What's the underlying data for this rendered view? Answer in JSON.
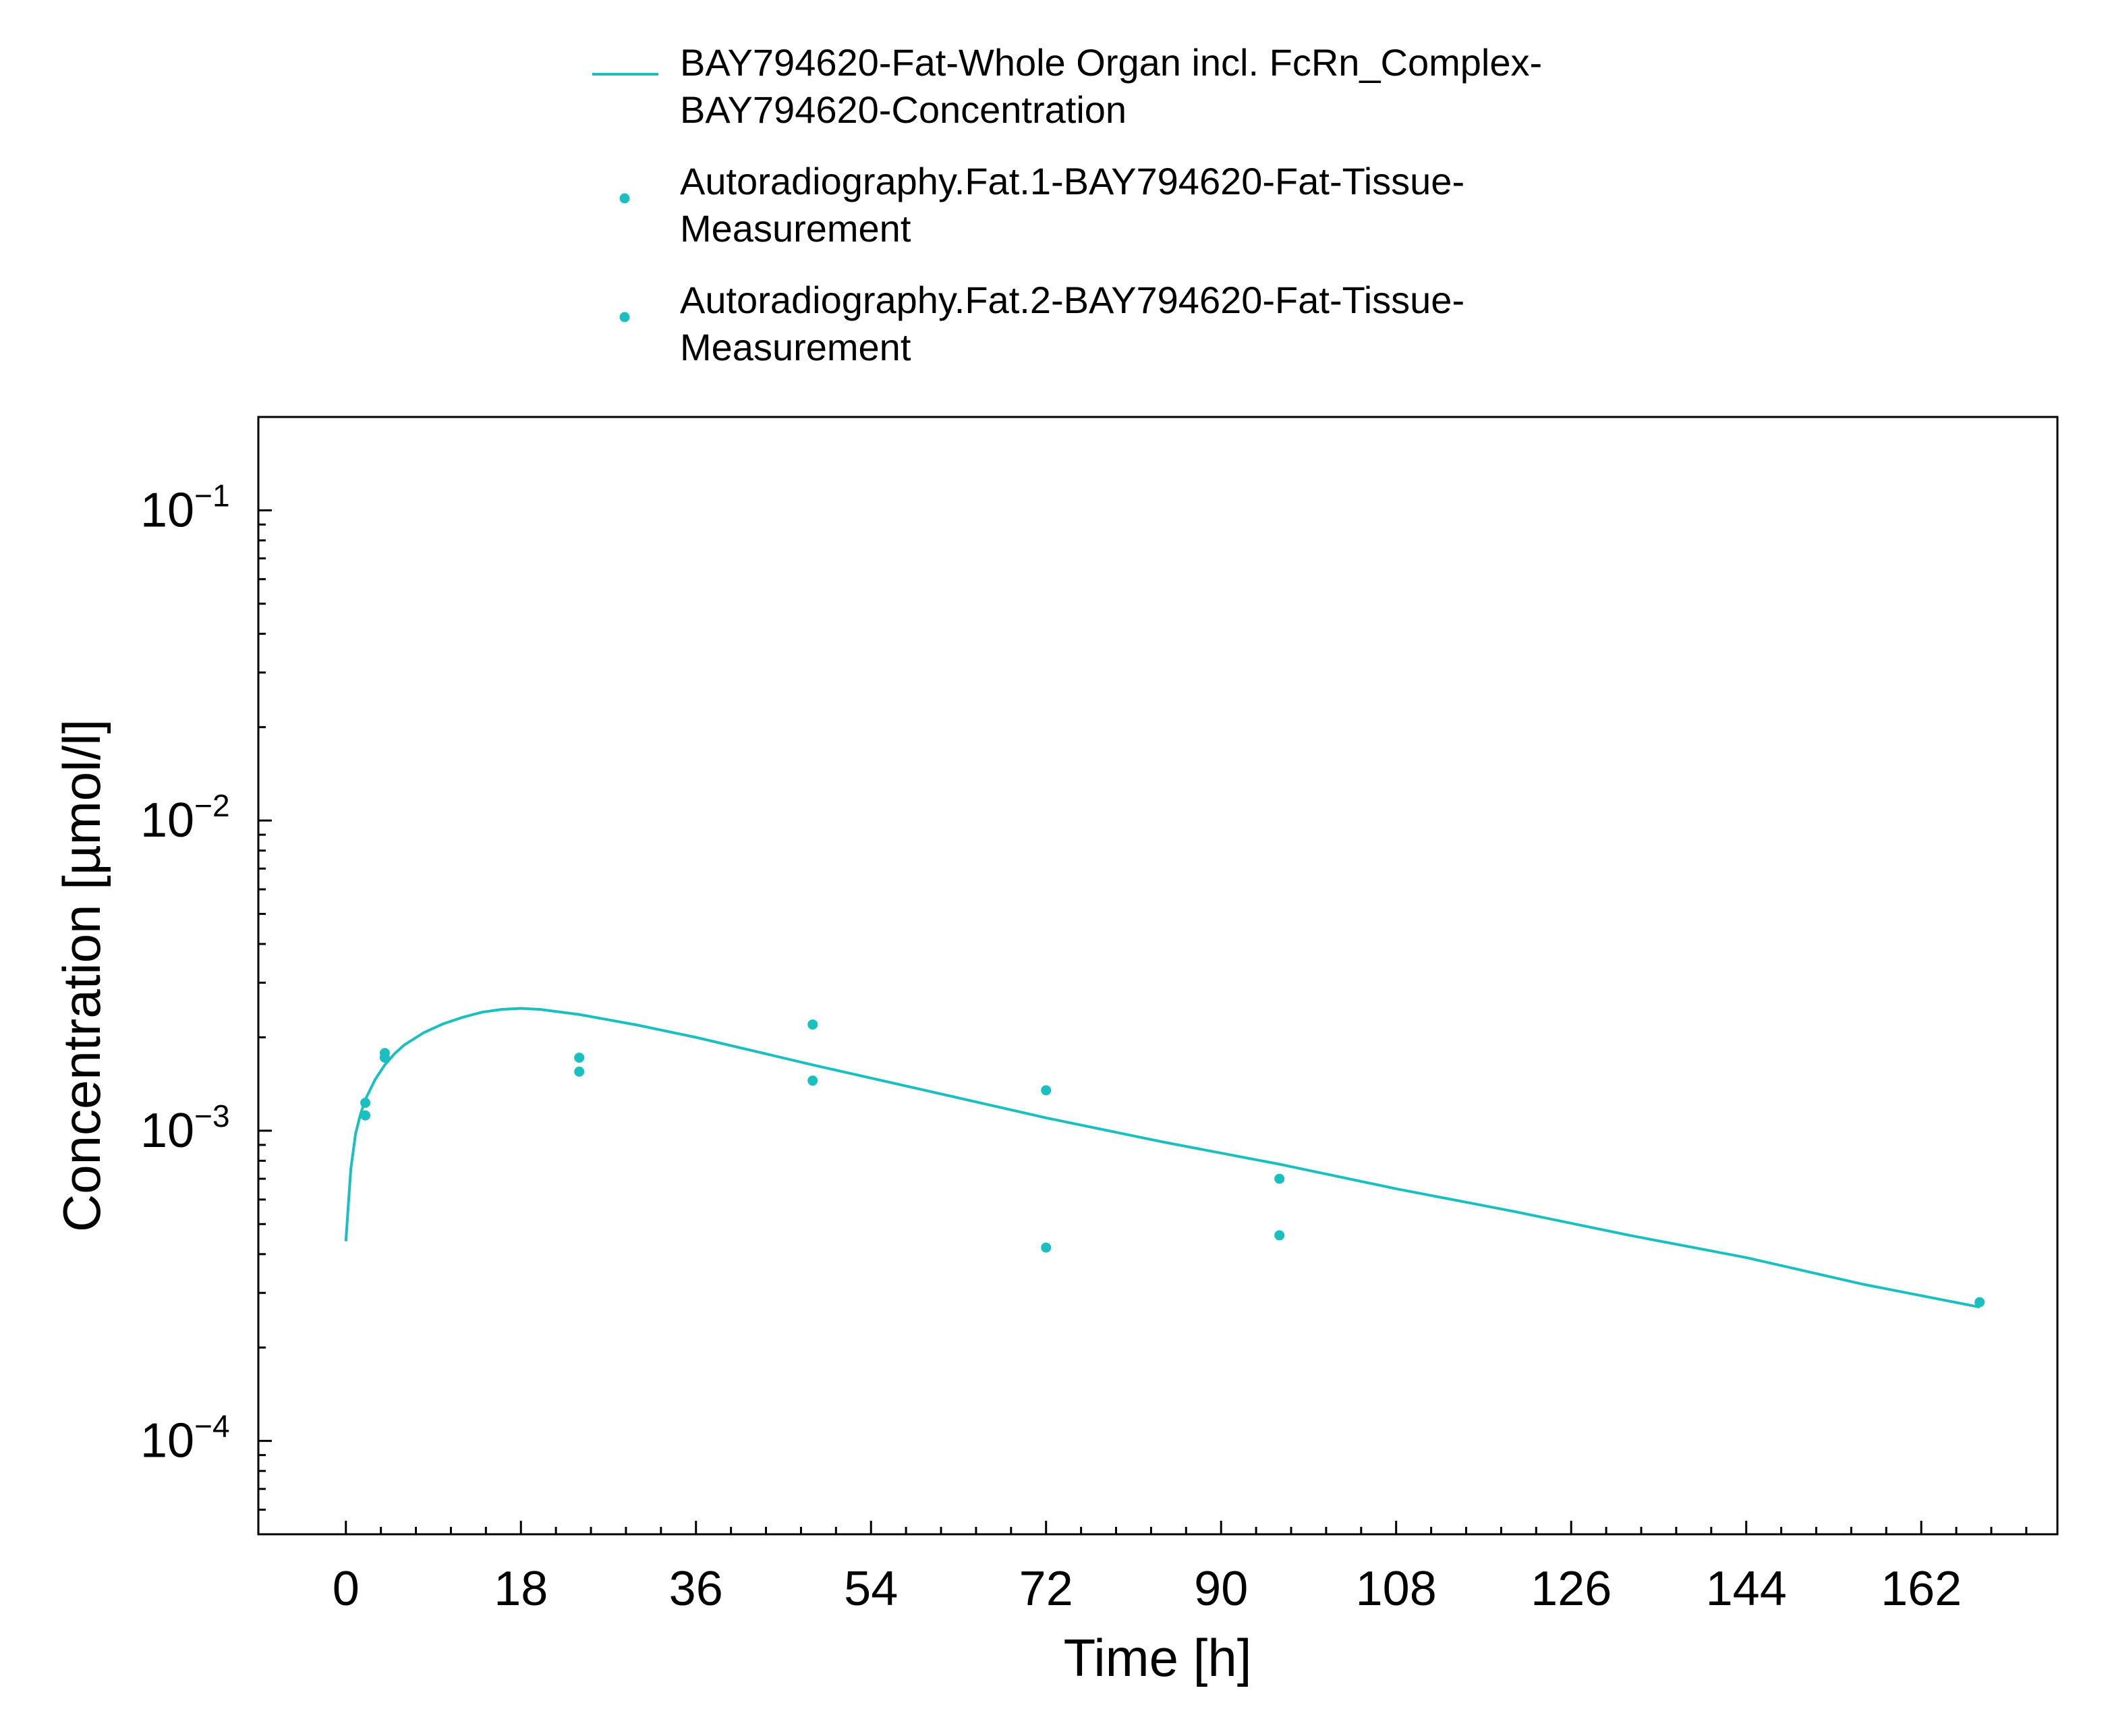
{
  "chart_data": {
    "type": "scatter",
    "xlabel": "Time [h]",
    "ylabel": "Concentration [µmol/l]",
    "xlim": [
      -9,
      176
    ],
    "xticks": [
      0,
      18,
      36,
      54,
      72,
      90,
      108,
      126,
      144,
      162
    ],
    "ylim": [
      5e-05,
      0.2
    ],
    "yscale": "log",
    "yticks": [
      {
        "value": 0.0001,
        "base": "10",
        "exp": "−4"
      },
      {
        "value": 0.001,
        "base": "10",
        "exp": "−3"
      },
      {
        "value": 0.01,
        "base": "10",
        "exp": "−2"
      },
      {
        "value": 0.1,
        "base": "10",
        "exp": "−1"
      }
    ],
    "grid": false,
    "legend_position": "top",
    "series": [
      {
        "name": "BAY794620-Fat-Whole Organ incl. FcRn_Complex-BAY794620-Concentration",
        "legend_lines": [
          "BAY794620-Fat-Whole Organ incl. FcRn_Complex-",
          "BAY794620-Concentration"
        ],
        "kind": "line",
        "color": "#1ABFBF",
        "x": [
          0,
          0.5,
          1,
          1.5,
          2,
          3,
          4,
          5,
          6,
          8,
          10,
          12,
          14,
          16,
          18,
          20,
          24,
          30,
          36,
          48,
          60,
          72,
          84,
          96,
          108,
          120,
          132,
          144,
          156,
          168
        ],
        "y": [
          0.00044,
          0.00075,
          0.00098,
          0.00113,
          0.00126,
          0.00146,
          0.00163,
          0.00177,
          0.00189,
          0.00207,
          0.00221,
          0.00232,
          0.00241,
          0.00246,
          0.00248,
          0.00246,
          0.00237,
          0.00219,
          0.002,
          0.00163,
          0.00134,
          0.0011,
          0.00092,
          0.00078,
          0.00065,
          0.00055,
          0.00046,
          0.00039,
          0.00032,
          0.00027
        ]
      },
      {
        "name": "Autoradiography.Fat.1-BAY794620-Fat-Tissue-Measurement",
        "legend_lines": [
          "Autoradiography.Fat.1-BAY794620-Fat-Tissue-",
          "Measurement"
        ],
        "kind": "scatter",
        "color": "#1ABFBF",
        "x": [
          2,
          4,
          24,
          48,
          72,
          96,
          168
        ],
        "y": [
          0.00123,
          0.00178,
          0.00172,
          0.0022,
          0.00135,
          0.0007,
          0.00028
        ]
      },
      {
        "name": "Autoradiography.Fat.2-BAY794620-Fat-Tissue-Measurement",
        "legend_lines": [
          "Autoradiography.Fat.2-BAY794620-Fat-Tissue-",
          "Measurement"
        ],
        "kind": "scatter",
        "color": "#1ABFBF",
        "x": [
          2,
          4,
          24,
          48,
          72,
          96
        ],
        "y": [
          0.00112,
          0.00172,
          0.00155,
          0.00145,
          0.00042,
          0.00046
        ]
      }
    ]
  }
}
